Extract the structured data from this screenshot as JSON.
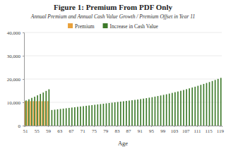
{
  "chart_data": {
    "type": "bar",
    "title": "Figure 1: Premium From PDF Only",
    "subtitle": "Annual Premium and Annual Cash Value Growth / Premium Offset in Year 11",
    "x_label": "Age",
    "categories": [
      "51",
      null,
      null,
      null,
      "55",
      null,
      null,
      null,
      "59",
      null,
      null,
      null,
      "63",
      null,
      null,
      null,
      "67",
      null,
      null,
      null,
      "71",
      null,
      null,
      null,
      "75",
      null,
      null,
      null,
      "79",
      null,
      null,
      null,
      "83",
      null,
      null,
      null,
      "87",
      null,
      null,
      null,
      "91",
      null,
      null,
      null,
      "95",
      null,
      null,
      null,
      "99",
      null,
      null,
      null,
      "103",
      null,
      null,
      null,
      "107",
      null,
      null,
      null,
      "111",
      null,
      null,
      null,
      "115",
      null,
      null,
      null,
      "119"
    ],
    "series": [
      {
        "name": "Premium",
        "color": "#e9a13b",
        "values": [
          10500,
          10500,
          10500,
          10500,
          10500,
          10500,
          10500,
          10500,
          10500,
          null,
          null,
          null,
          null,
          null,
          null,
          null,
          null,
          null,
          null,
          null,
          null,
          null,
          null,
          null,
          null,
          null,
          null,
          null,
          null,
          null,
          null,
          null,
          null,
          null,
          null,
          null,
          null,
          null,
          null,
          null,
          null,
          null,
          null,
          null,
          null,
          null,
          null,
          null,
          null,
          null,
          null,
          null,
          null,
          null,
          null,
          null,
          null,
          null,
          null,
          null,
          null,
          null,
          null,
          null,
          null,
          null,
          null,
          null,
          null
        ]
      },
      {
        "name": "Increase in Cash Value",
        "color": "#3d7a2a",
        "values": [
          10800,
          11300,
          11900,
          12400,
          13000,
          13600,
          14200,
          14900,
          15600,
          6700,
          6850,
          7000,
          7150,
          7300,
          7450,
          7600,
          7750,
          7900,
          8050,
          8200,
          8350,
          8500,
          8650,
          8800,
          8950,
          9100,
          9250,
          9400,
          9550,
          9700,
          9850,
          10000,
          10150,
          10300,
          10450,
          10600,
          10750,
          10900,
          11050,
          11200,
          11400,
          11600,
          11800,
          12000,
          12200,
          12450,
          12700,
          12950,
          13200,
          13450,
          13750,
          14050,
          14350,
          14650,
          14950,
          15300,
          15650,
          16000,
          16350,
          16700,
          17100,
          17500,
          17900,
          18300,
          18700,
          19150,
          19600,
          20050,
          20500
        ]
      }
    ],
    "ylim": [
      0,
      40000
    ],
    "yticks": [
      0,
      {
        "value": 10000,
        "label": "10,000"
      },
      {
        "value": 20000,
        "label": "20,000"
      },
      {
        "value": 30000,
        "label": "30,000"
      },
      {
        "value": 40000,
        "label": "40,000"
      }
    ],
    "grid": true,
    "legend": "top"
  }
}
